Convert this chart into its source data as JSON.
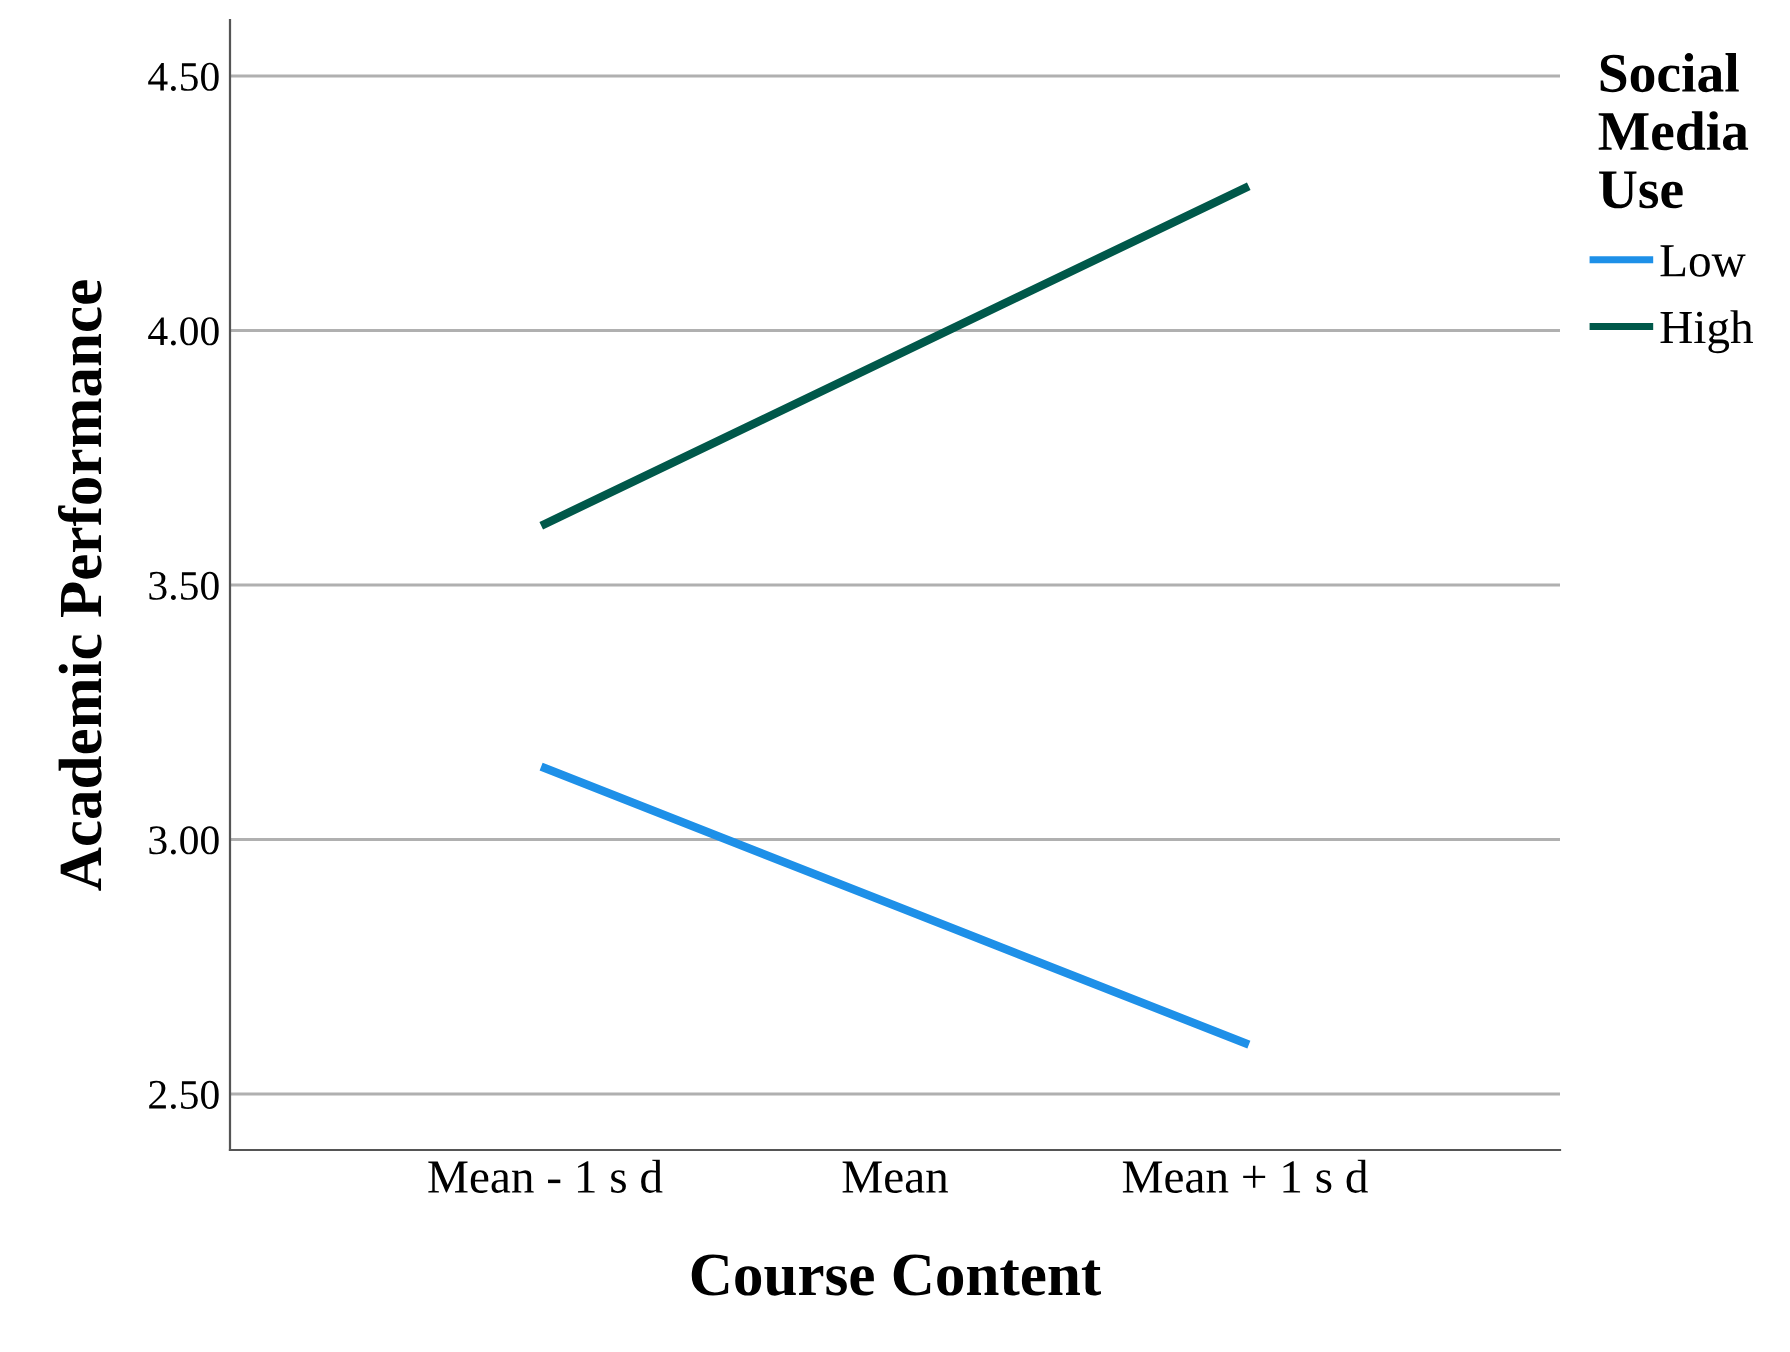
{
  "chart_data": {
    "type": "line",
    "xlabel": "Course Content",
    "ylabel": "Academic Performance",
    "legend_title": "Social\nMedia\nUse",
    "categories": [
      "Mean - 1 s d",
      "Mean",
      "Mean + 1 s d"
    ],
    "series": [
      {
        "name": "Low",
        "color": "#1e90e8",
        "values": [
          3.14,
          2.87,
          2.6
        ]
      },
      {
        "name": "High",
        "color": "#00584a",
        "values": [
          3.62,
          3.95,
          4.28
        ]
      }
    ],
    "ylim": [
      2.39,
      4.61
    ],
    "yticks": [
      {
        "value": 2.5,
        "label": "2.50"
      },
      {
        "value": 3.0,
        "label": "3.00"
      },
      {
        "value": 3.5,
        "label": "3.50"
      },
      {
        "value": 4.0,
        "label": "4.00"
      },
      {
        "value": 4.5,
        "label": "4.50"
      }
    ],
    "grid": "y",
    "legend": "right",
    "marker": "none",
    "line_style": "solid"
  }
}
